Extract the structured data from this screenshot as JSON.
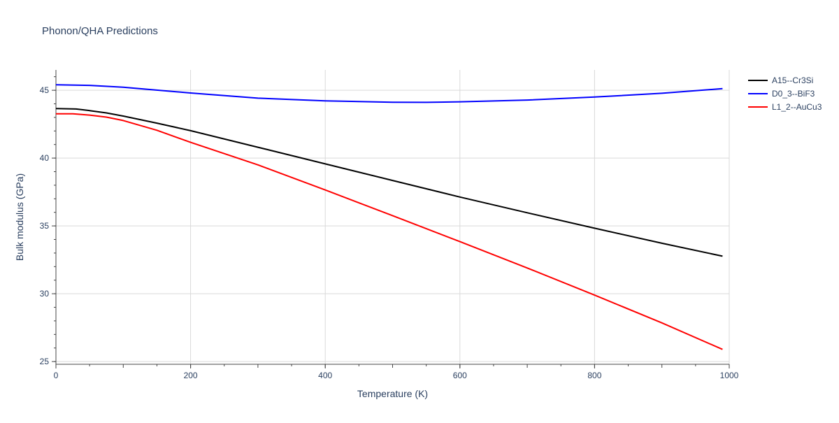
{
  "chart_data": {
    "type": "line",
    "title": "Phonon/QHA Predictions",
    "xlabel": "Temperature (K)",
    "ylabel": "Bulk modulus (GPa)",
    "xlim": [
      0,
      1000
    ],
    "ylim": [
      24.8,
      46.5
    ],
    "xticks": [
      0,
      200,
      400,
      600,
      800,
      1000
    ],
    "yticks": [
      25,
      30,
      35,
      40,
      45
    ],
    "grid": true,
    "legend_position": "top-right",
    "series": [
      {
        "name": "A15--Cr3Si",
        "color": "#000000",
        "x": [
          0,
          30,
          50,
          75,
          100,
          150,
          200,
          300,
          400,
          500,
          600,
          700,
          800,
          900,
          990
        ],
        "y": [
          43.65,
          43.62,
          43.5,
          43.33,
          43.1,
          42.58,
          42.02,
          40.8,
          39.57,
          38.35,
          37.13,
          35.97,
          34.83,
          33.72,
          32.77
        ]
      },
      {
        "name": "D0_3--BiF3",
        "color": "#0000ff",
        "x": [
          0,
          50,
          100,
          200,
          300,
          400,
          500,
          550,
          600,
          700,
          800,
          900,
          990
        ],
        "y": [
          45.4,
          45.36,
          45.22,
          44.8,
          44.42,
          44.22,
          44.12,
          44.11,
          44.15,
          44.28,
          44.5,
          44.78,
          45.12
        ]
      },
      {
        "name": "L1_2--AuCu3",
        "color": "#ff0000",
        "x": [
          0,
          25,
          50,
          75,
          100,
          150,
          200,
          300,
          400,
          500,
          600,
          700,
          800,
          900,
          990
        ],
        "y": [
          43.27,
          43.27,
          43.17,
          43.02,
          42.77,
          42.05,
          41.16,
          39.5,
          37.65,
          35.76,
          33.84,
          31.9,
          29.9,
          27.85,
          25.9
        ]
      }
    ]
  }
}
